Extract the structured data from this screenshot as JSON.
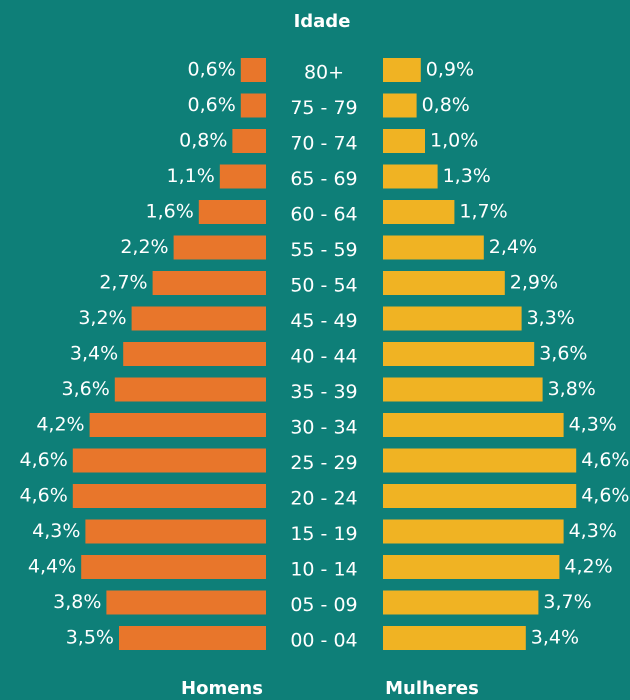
{
  "chart_data": {
    "type": "pyramid",
    "title": "Idade",
    "categories": [
      "80+",
      "75 - 79",
      "70 - 74",
      "65 - 69",
      "60 - 64",
      "55 - 59",
      "50 - 54",
      "45 - 49",
      "40 - 44",
      "35 - 39",
      "30 - 34",
      "25 - 29",
      "20 - 24",
      "15 - 19",
      "10 - 14",
      "05 - 09",
      "00 - 04"
    ],
    "series": [
      {
        "name": "Homens",
        "color": "#e8762b",
        "values": [
          0.6,
          0.6,
          0.8,
          1.1,
          1.6,
          2.2,
          2.7,
          3.2,
          3.4,
          3.6,
          4.2,
          4.6,
          4.6,
          4.3,
          4.4,
          3.8,
          3.5
        ],
        "value_labels": [
          "0,6%",
          "0,6%",
          "0,8%",
          "1,1%",
          "1,6%",
          "2,2%",
          "2,7%",
          "3,2%",
          "3,4%",
          "3,6%",
          "4,2%",
          "4,6%",
          "4,6%",
          "4,3%",
          "4,4%",
          "3,8%",
          "3,5%"
        ]
      },
      {
        "name": "Mulheres",
        "color": "#f0b323",
        "values": [
          0.9,
          0.8,
          1.0,
          1.3,
          1.7,
          2.4,
          2.9,
          3.3,
          3.6,
          3.8,
          4.3,
          4.6,
          4.6,
          4.3,
          4.2,
          3.7,
          3.4
        ],
        "value_labels": [
          "0,9%",
          "0,8%",
          "1,0%",
          "1,3%",
          "1,7%",
          "2,4%",
          "2,9%",
          "3,3%",
          "3,6%",
          "3,8%",
          "4,3%",
          "4,6%",
          "4,6%",
          "4,3%",
          "4,2%",
          "3,7%",
          "3,4%"
        ]
      }
    ]
  }
}
